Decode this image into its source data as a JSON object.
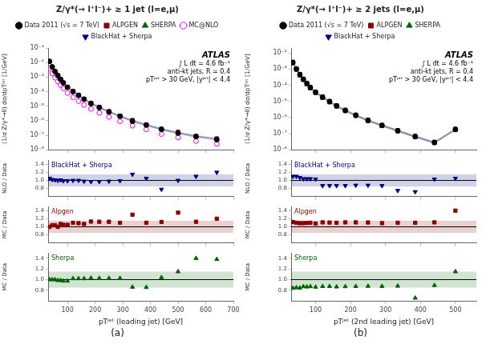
{
  "chart_data": [
    {
      "type": "scatter",
      "title": "Z/γ*(→ l⁺l⁻)+ ≥ 1 jet (l=e,μ)",
      "ylabel": "(1/σ Z/γ*→ll) dσ/dpTʲᵉᵗ [1/GeV]",
      "annotations": [
        "ATLAS",
        "∫ L dt = 4.6 fb⁻¹",
        "anti-kt jets, R = 0.4",
        "pTʲᵉᵗ > 30 GeV, |yʲᵉᵗ| < 4.4"
      ],
      "log": "y",
      "grid": false,
      "legend": "top",
      "tick_labels": "y",
      "x": [
        35,
        45,
        55,
        65,
        75,
        85,
        100,
        120,
        140,
        160,
        185,
        215,
        250,
        290,
        335,
        385,
        440,
        500,
        565,
        640
      ],
      "xlim": [
        30,
        700
      ],
      "xticks": [
        100,
        200,
        300,
        400,
        500,
        600,
        700
      ],
      "ylim": [
        1e-08,
        0.1
      ],
      "yticks": [
        {
          "value": 1e-08,
          "label": "10⁻⁸"
        },
        {
          "value": 1e-07,
          "label": "10⁻⁷"
        },
        {
          "value": 1e-06,
          "label": "10⁻⁶"
        },
        {
          "value": 1e-05,
          "label": "10⁻⁵"
        },
        {
          "value": 0.0001,
          "label": "10⁻⁴"
        },
        {
          "value": 0.001,
          "label": "10⁻³"
        },
        {
          "value": 0.01,
          "label": "10⁻²"
        },
        {
          "value": 0.1,
          "label": "10⁻¹"
        }
      ],
      "series": [
        {
          "name": "Data 2011 (√s = 7 TeV)",
          "color": "#000000",
          "marker": "circle",
          "values": [
            0.012,
            0.005,
            0.0024,
            0.0013,
            0.0007,
            0.0004,
            0.0002,
            0.0001,
            5.5e-05,
            3e-05,
            1.5e-05,
            8e-06,
            4e-06,
            2e-06,
            9e-07,
            5e-07,
            2.5e-07,
            1.4e-07,
            8e-08,
            5e-08
          ],
          "errors": [
            0.0018,
            0.00075,
            0.00036,
            0.000195,
            0.000105,
            6e-05,
            3e-05,
            1.5e-05,
            8.25e-06,
            4.5e-06,
            2.25e-06,
            1.2e-06,
            6e-07,
            3e-07,
            1.35e-07,
            7.5e-08,
            3.75e-08,
            2.1e-08,
            1.2e-08,
            7.5e-09
          ]
        },
        {
          "name": "ALPGEN",
          "color": "#8B0000",
          "marker": "square",
          "values": [
            0.012,
            0.0052,
            0.0025,
            0.0013,
            0.00075,
            0.00042,
            0.00021,
            0.00011,
            6e-05,
            3.2e-05,
            1.7e-05,
            9e-06,
            4.5e-06,
            2.2e-06,
            1.1e-06,
            5.5e-07,
            2.8e-07,
            1.7e-07,
            9e-08,
            6e-08
          ]
        },
        {
          "name": "SHERPA",
          "color": "#006400",
          "marker": "triangle",
          "values": [
            0.012,
            0.005,
            0.0024,
            0.00128,
            0.00069,
            0.00039,
            0.000195,
            0.000102,
            5.6e-05,
            3.05e-05,
            1.55e-05,
            8.2e-06,
            4.1e-06,
            2.05e-06,
            1e-06,
            5.2e-07,
            2.6e-07,
            1.5e-07,
            8.5e-08,
            5.5e-08
          ]
        },
        {
          "name": "MC@NLO",
          "color": "#FF00FF",
          "marker": "open_circle",
          "values": [
            0.004,
            0.0018,
            0.0009,
            0.0005,
            0.00028,
            0.00017,
            8e-05,
            4e-05,
            2.2e-05,
            1.2e-05,
            6.5e-06,
            3.5e-06,
            1.8e-06,
            9e-07,
            4.5e-07,
            2.5e-07,
            1.2e-07,
            7e-08,
            4e-08,
            2.5e-08
          ]
        },
        {
          "name": "BlackHat + Sherpa",
          "color": "#000080",
          "marker": "triangle_down",
          "values": [
            0.012,
            0.0051,
            0.00245,
            0.00128,
            0.00071,
            0.0004,
            0.0002,
            0.000105,
            5.7e-05,
            3.1e-05,
            1.6e-05,
            8.5e-06,
            4.3e-06,
            2.1e-06,
            1.05e-06,
            5.3e-07,
            2.7e-07,
            1.5e-07,
            8.8e-08,
            5.8e-08
          ],
          "band": [
            0.0018,
            0.000765,
            0.0003675,
            0.000192,
            0.0001065,
            6e-05,
            3e-05,
            1.575e-05,
            8.55e-06,
            4.65e-06,
            2.4e-06,
            1.275e-06,
            6.45e-07,
            3.15e-07,
            1.575e-07,
            7.95e-08,
            4.05e-08,
            2.25e-08,
            1.32e-08,
            8.7e-09
          ]
        }
      ]
    },
    {
      "type": "scatter",
      "ylabel": "NLO / Data",
      "annotations": [
        "BlackHat + Sherpa"
      ],
      "grid": false,
      "tick_labels": "y",
      "x": [
        35,
        45,
        55,
        65,
        75,
        85,
        100,
        120,
        140,
        160,
        185,
        215,
        250,
        290,
        335,
        385,
        440,
        500,
        565,
        640
      ],
      "xlim": [
        30,
        700
      ],
      "xticks": [
        100,
        200,
        300,
        400,
        500,
        600,
        700
      ],
      "ylim": [
        0.6,
        1.5
      ],
      "yticks": [
        0.8,
        {
          "value": 1,
          "label": "1.0"
        },
        1.2,
        1.4
      ],
      "reference_line": 1,
      "band": [
        0.85,
        1.15
      ],
      "color": "#000080",
      "marker": "triangle_down",
      "values": [
        1.05,
        1.02,
        1.01,
        1.0,
        1.01,
        0.99,
        0.99,
        1.0,
        1.0,
        0.98,
        0.97,
        0.97,
        0.98,
        0.99,
        1.15,
        1.05,
        0.78,
        1.0,
        1.1,
        1.2
      ]
    },
    {
      "type": "scatter",
      "ylabel": "MC / Data",
      "annotations": [
        "Alpgen"
      ],
      "grid": false,
      "tick_labels": "y",
      "x": [
        35,
        45,
        55,
        65,
        75,
        85,
        100,
        120,
        140,
        160,
        185,
        215,
        250,
        290,
        335,
        385,
        440,
        500,
        565,
        640
      ],
      "xlim": [
        30,
        700
      ],
      "xticks": [
        100,
        200,
        300,
        400,
        500,
        600,
        700
      ],
      "ylim": [
        0.6,
        1.5
      ],
      "yticks": [
        0.8,
        {
          "value": 1,
          "label": "1.0"
        },
        1.2,
        1.4
      ],
      "reference_line": 1,
      "band": [
        0.85,
        1.15
      ],
      "color": "#8B0000",
      "marker": "square",
      "values": [
        1.0,
        1.04,
        1.04,
        1.0,
        1.07,
        1.05,
        1.05,
        1.1,
        1.09,
        1.07,
        1.13,
        1.125,
        1.125,
        1.1,
        1.3,
        1.1,
        1.12,
        1.35,
        1.125,
        1.2
      ]
    },
    {
      "type": "scatter",
      "ylabel": "MC / Data",
      "xlabel": "pTʲᵉᵗ (leading jet) [GeV]",
      "subtitle": "(a)",
      "annotations": [
        "Sherpa"
      ],
      "grid": false,
      "x": [
        35,
        45,
        55,
        65,
        75,
        85,
        100,
        120,
        140,
        160,
        185,
        215,
        250,
        290,
        335,
        385,
        440,
        500,
        565,
        640
      ],
      "xlim": [
        30,
        700
      ],
      "xticks": [
        100,
        200,
        300,
        400,
        500,
        600,
        700
      ],
      "ylim": [
        0.6,
        1.5
      ],
      "yticks": [
        0.8,
        {
          "value": 1,
          "label": "1.0"
        },
        1.2,
        1.4
      ],
      "reference_line": 1,
      "band": [
        0.85,
        1.15
      ],
      "color": "#006400",
      "marker": "triangle",
      "values": [
        1.0,
        1.0,
        1.0,
        0.985,
        0.986,
        0.975,
        0.975,
        1.02,
        1.02,
        1.02,
        1.03,
        1.025,
        1.025,
        1.025,
        0.86,
        0.855,
        1.04,
        1.15,
        1.4,
        1.38
      ]
    },
    {
      "type": "scatter",
      "title": "Z/γ*(→ l⁺l⁻)+ ≥ 2 jets (l=e,μ)",
      "ylabel": "(1/σ Z/γ*→ll) dσ/dpTʲᵉᵗ [1/GeV]",
      "annotations": [
        "ATLAS",
        "∫ L dt = 4.6 fb⁻¹",
        "anti-kt jets, R = 0.4",
        "pTʲᵉᵗ > 30 GeV, |yʲᵉᵗ| < 4.4"
      ],
      "log": "y",
      "grid": false,
      "legend": "top",
      "tick_labels": "y",
      "x": [
        35,
        45,
        55,
        65,
        75,
        85,
        100,
        120,
        140,
        160,
        185,
        215,
        250,
        290,
        335,
        385,
        440,
        500
      ],
      "xlim": [
        30,
        560
      ],
      "xticks": [
        100,
        200,
        300,
        400,
        500
      ],
      "ylim": [
        1e-08,
        0.02
      ],
      "yticks": [
        {
          "value": 1e-08,
          "label": "10⁻⁸"
        },
        {
          "value": 1e-07,
          "label": "10⁻⁷"
        },
        {
          "value": 1e-06,
          "label": "10⁻⁶"
        },
        {
          "value": 1e-05,
          "label": "10⁻⁵"
        },
        {
          "value": 0.0001,
          "label": "10⁻⁴"
        },
        {
          "value": 0.001,
          "label": "10⁻³"
        },
        {
          "value": 0.01,
          "label": "10⁻²"
        }
      ],
      "series": [
        {
          "name": "Data 2011 (√s = 7 TeV)",
          "color": "#000000",
          "marker": "circle",
          "values": [
            0.0025,
            0.001,
            0.00045,
            0.00023,
            0.000125,
            7e-05,
            3.6e-05,
            1.8e-05,
            9.5e-06,
            5.2e-06,
            2.7e-06,
            1.35e-06,
            6.5e-07,
            3.2e-07,
            1.5e-07,
            6.5e-08,
            2.8e-08,
            1.8e-07
          ],
          "errors": [
            0.000375,
            0.00015,
            6.75e-05,
            3.45e-05,
            1.875e-05,
            1.05e-05,
            5.4e-06,
            2.7e-06,
            1.425e-06,
            7.8e-07,
            4.05e-07,
            2.025e-07,
            9.75e-08,
            4.8e-08,
            2.25e-08,
            9.75e-09,
            4.2e-09,
            2.7e-08
          ]
        },
        {
          "name": "ALPGEN",
          "color": "#8B0000",
          "marker": "square",
          "values": [
            0.0028,
            0.0011,
            0.00049,
            0.00025,
            0.000137,
            7.7e-05,
            3.9e-05,
            2e-05,
            1.05e-05,
            5.7e-06,
            3e-06,
            1.5e-06,
            7.2e-07,
            3.5e-07,
            1.65e-07,
            7.2e-08,
            3.1e-08,
            2e-07
          ]
        },
        {
          "name": "SHERPA",
          "color": "#006400",
          "marker": "triangle",
          "values": [
            0.0021,
            0.00085,
            0.00038,
            0.0002,
            0.000108,
            6.1e-05,
            3.1e-05,
            1.57e-05,
            8.3e-06,
            4.5e-06,
            2.35e-06,
            1.18e-06,
            5.7e-07,
            2.8e-07,
            1.32e-07,
            5.8e-08,
            2.5e-08,
            1.6e-07
          ]
        },
        {
          "name": "BlackHat + Sherpa",
          "color": "#000080",
          "marker": "triangle_down",
          "values": [
            0.00275,
            0.0011,
            0.00048,
            0.00024,
            0.00013,
            7.3e-05,
            3.7e-05,
            1.85e-05,
            9.8e-06,
            5.3e-06,
            2.75e-06,
            1.38e-06,
            6.6e-07,
            3.25e-07,
            1.52e-07,
            6.6e-08,
            2.85e-08,
            1.85e-07
          ],
          "band": [
            0.0004125,
            0.000165,
            7.2e-05,
            3.6e-05,
            1.95e-05,
            1.095e-05,
            5.55e-06,
            2.775e-06,
            1.47e-06,
            7.95e-07,
            4.125e-07,
            2.07e-07,
            9.9e-08,
            4.875e-08,
            2.28e-08,
            9.9e-09,
            4.275e-09,
            2.775e-08
          ]
        }
      ]
    },
    {
      "type": "scatter",
      "ylabel": "NLO / Data",
      "annotations": [
        "BlackHat + Sherpa"
      ],
      "grid": false,
      "tick_labels": "y",
      "x": [
        35,
        45,
        55,
        65,
        75,
        85,
        100,
        120,
        140,
        160,
        185,
        215,
        250,
        290,
        335,
        385,
        440,
        500
      ],
      "xlim": [
        30,
        560
      ],
      "xticks": [
        100,
        200,
        300,
        400,
        500
      ],
      "ylim": [
        0.6,
        1.5
      ],
      "yticks": [
        0.8,
        {
          "value": 1,
          "label": "1.0"
        },
        1.2,
        1.4
      ],
      "reference_line": 1,
      "band": [
        0.85,
        1.15
      ],
      "color": "#000080",
      "marker": "triangle_down",
      "values": [
        1.1,
        1.1,
        1.07,
        1.04,
        1.04,
        1.04,
        1.03,
        0.87,
        0.87,
        0.87,
        0.87,
        0.88,
        0.88,
        0.87,
        0.75,
        0.72,
        1.03,
        1.05
      ]
    },
    {
      "type": "scatter",
      "ylabel": "MC / Data",
      "annotations": [
        "Alpgen"
      ],
      "grid": false,
      "tick_labels": "y",
      "x": [
        35,
        45,
        55,
        65,
        75,
        85,
        100,
        120,
        140,
        160,
        185,
        215,
        250,
        290,
        335,
        385,
        440,
        500
      ],
      "xlim": [
        30,
        560
      ],
      "xticks": [
        100,
        200,
        300,
        400,
        500
      ],
      "ylim": [
        0.6,
        1.5
      ],
      "yticks": [
        0.8,
        {
          "value": 1,
          "label": "1.0"
        },
        1.2,
        1.4
      ],
      "reference_line": 1,
      "band": [
        0.85,
        1.15
      ],
      "color": "#8B0000",
      "marker": "square",
      "values": [
        1.12,
        1.1,
        1.09,
        1.09,
        1.096,
        1.1,
        1.08,
        1.11,
        1.105,
        1.1,
        1.11,
        1.11,
        1.108,
        1.09,
        1.1,
        1.1,
        1.11,
        1.4
      ]
    },
    {
      "type": "scatter",
      "ylabel": "MC / Data",
      "xlabel": "pTʲᵉᵗ (2nd leading jet) [GeV]",
      "subtitle": "(b)",
      "annotations": [
        "Sherpa"
      ],
      "grid": false,
      "x": [
        35,
        45,
        55,
        65,
        75,
        85,
        100,
        120,
        140,
        160,
        185,
        215,
        250,
        290,
        335,
        385,
        440,
        500
      ],
      "xlim": [
        30,
        560
      ],
      "xticks": [
        100,
        200,
        300,
        400,
        500
      ],
      "ylim": [
        0.6,
        1.5
      ],
      "yticks": [
        0.8,
        {
          "value": 1,
          "label": "1.0"
        },
        1.2,
        1.4
      ],
      "reference_line": 1,
      "band": [
        0.85,
        1.15
      ],
      "color": "#006400",
      "marker": "triangle",
      "values": [
        0.84,
        0.85,
        0.844,
        0.87,
        0.864,
        0.871,
        0.861,
        0.873,
        0.874,
        0.865,
        0.87,
        0.874,
        0.877,
        0.875,
        0.88,
        0.655,
        0.893,
        1.15
      ]
    }
  ]
}
